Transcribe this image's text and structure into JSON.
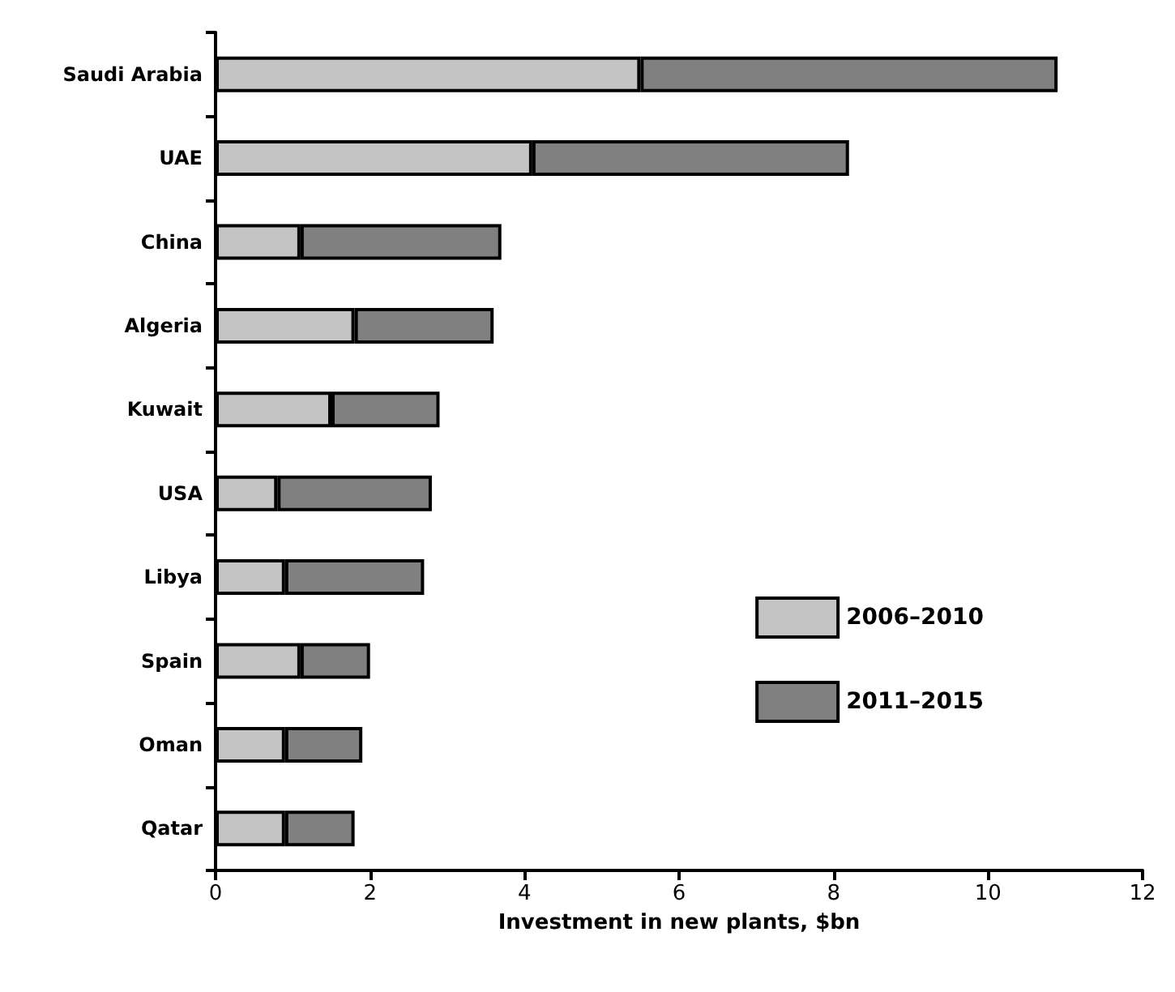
{
  "chart_data": {
    "type": "bar",
    "orientation": "horizontal",
    "stacked": true,
    "xlabel": "Investment in new plants, $bn",
    "categories": [
      "Saudi Arabia",
      "UAE",
      "China",
      "Algeria",
      "Kuwait",
      "USA",
      "Libya",
      "Spain",
      "Oman",
      "Qatar"
    ],
    "series": [
      {
        "name": "2006–2010",
        "color": "#c4c4c4",
        "values": [
          5.5,
          4.1,
          1.1,
          1.8,
          1.5,
          0.8,
          0.9,
          1.1,
          0.9,
          0.9
        ]
      },
      {
        "name": "2011–2015",
        "color": "#808080",
        "values": [
          5.4,
          4.1,
          2.6,
          1.8,
          1.4,
          2.0,
          1.8,
          0.9,
          1.0,
          0.9
        ]
      }
    ],
    "xlim": [
      0,
      12
    ],
    "xticks": [
      0,
      2,
      4,
      6,
      8,
      10,
      12
    ],
    "grid": false,
    "legend": "right"
  }
}
